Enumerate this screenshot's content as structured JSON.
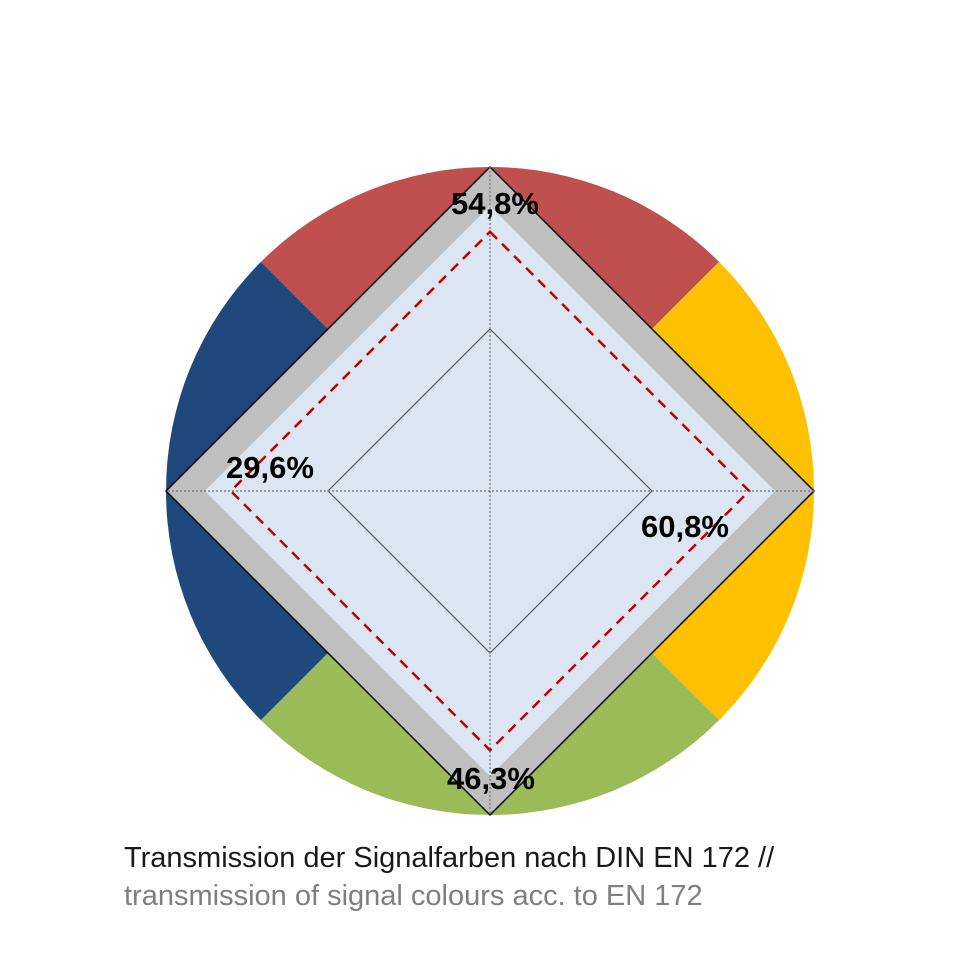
{
  "chart_data": {
    "type": "radar",
    "axes": [
      "red",
      "yellow",
      "green",
      "blue"
    ],
    "values": [
      54.8,
      60.8,
      46.3,
      29.6
    ],
    "value_labels": [
      "54,8%",
      "60,8%",
      "46,3%",
      "29,6%"
    ],
    "limit_values": [
      80,
      80,
      80,
      80
    ],
    "ticks": [
      0,
      50,
      100
    ],
    "range": [
      0,
      100
    ],
    "colors": {
      "red": "#c0504d",
      "yellow": "#ffc000",
      "green": "#9bbb59",
      "blue": "#1f497d",
      "band": "#bfbfbf",
      "area": "#dce6f2",
      "limit_line": "#c00000"
    }
  },
  "caption": {
    "line1": "Transmission der Signalfarben nach DIN EN 172 //",
    "line2": "transmission of signal colours acc. to EN 172"
  }
}
